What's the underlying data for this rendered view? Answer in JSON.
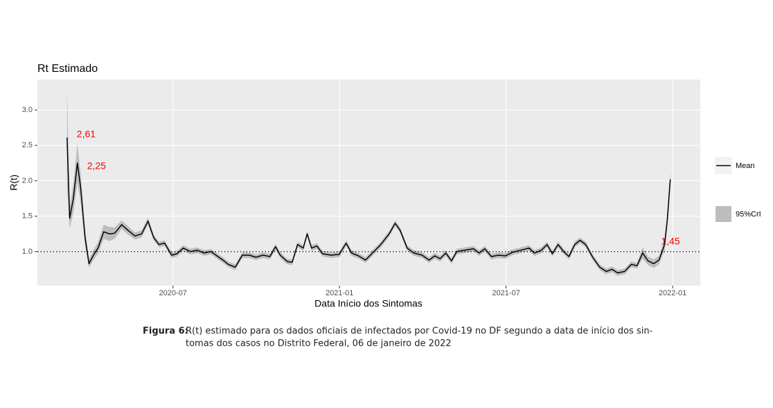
{
  "chart_data": {
    "type": "line",
    "title": "Rt Estimado",
    "x_label": "Data Início dos Sintomas",
    "y_label": "R(t)",
    "x": [
      2020.182,
      2020.19,
      2020.201,
      2020.213,
      2020.223,
      2020.236,
      2020.248,
      2020.261,
      2020.275,
      2020.292,
      2020.309,
      2020.325,
      2020.346,
      2020.365,
      2020.386,
      2020.406,
      2020.425,
      2020.442,
      2020.458,
      2020.475,
      2020.496,
      2020.512,
      2020.531,
      2020.552,
      2020.573,
      2020.594,
      2020.614,
      2020.629,
      2020.65,
      2020.666,
      2020.687,
      2020.708,
      2020.729,
      2020.749,
      2020.77,
      2020.791,
      2020.808,
      2020.822,
      2020.843,
      2020.858,
      2020.874,
      2020.891,
      2020.903,
      2020.916,
      2020.932,
      2020.949,
      2020.974,
      2020.999,
      2021.02,
      2021.036,
      2021.057,
      2021.078,
      2021.099,
      2021.124,
      2021.149,
      2021.167,
      2021.182,
      2021.203,
      2021.223,
      2021.248,
      2021.269,
      2021.286,
      2021.302,
      2021.319,
      2021.336,
      2021.352,
      2021.377,
      2021.402,
      2021.419,
      2021.436,
      2021.456,
      2021.477,
      2021.498,
      2021.519,
      2021.544,
      2021.569,
      2021.585,
      2021.606,
      2021.623,
      2021.639,
      2021.656,
      2021.673,
      2021.689,
      2021.706,
      2021.722,
      2021.739,
      2021.76,
      2021.781,
      2021.801,
      2021.818,
      2021.835,
      2021.856,
      2021.876,
      2021.893,
      2021.91,
      2021.926,
      2021.943,
      2021.959,
      2021.976,
      2021.984,
      2021.993
    ],
    "series": [
      {
        "name": "Mean",
        "color": "#000000",
        "values": [
          2.61,
          1.47,
          1.75,
          2.25,
          1.9,
          1.2,
          0.83,
          0.95,
          1.05,
          1.28,
          1.25,
          1.26,
          1.38,
          1.3,
          1.22,
          1.25,
          1.43,
          1.2,
          1.1,
          1.12,
          0.95,
          0.97,
          1.05,
          1.0,
          1.02,
          0.98,
          1.0,
          0.95,
          0.88,
          0.82,
          0.78,
          0.95,
          0.95,
          0.92,
          0.95,
          0.93,
          1.07,
          0.95,
          0.86,
          0.85,
          1.1,
          1.05,
          1.25,
          1.05,
          1.08,
          0.97,
          0.95,
          0.96,
          1.12,
          0.98,
          0.94,
          0.88,
          0.98,
          1.1,
          1.25,
          1.4,
          1.3,
          1.05,
          0.98,
          0.95,
          0.88,
          0.94,
          0.9,
          0.98,
          0.87,
          1.0,
          1.02,
          1.04,
          0.98,
          1.04,
          0.93,
          0.95,
          0.94,
          0.99,
          1.02,
          1.05,
          0.98,
          1.02,
          1.1,
          0.97,
          1.1,
          1.0,
          0.93,
          1.1,
          1.16,
          1.1,
          0.92,
          0.78,
          0.72,
          0.75,
          0.7,
          0.72,
          0.82,
          0.8,
          0.98,
          0.87,
          0.83,
          0.88,
          1.1,
          1.45,
          2.02
        ],
        "value_labels": [
          "2,61",
          null,
          null,
          "2,25",
          null,
          null,
          null,
          null,
          null,
          null,
          null,
          null,
          null,
          null,
          null,
          null,
          null,
          null,
          null,
          null,
          null,
          null,
          null,
          null,
          null,
          null,
          null,
          null,
          null,
          null,
          null,
          null,
          null,
          null,
          null,
          null,
          null,
          null,
          null,
          null,
          null,
          null,
          null,
          null,
          null,
          null,
          null,
          null,
          null,
          null,
          null,
          null,
          null,
          null,
          null,
          null,
          null,
          null,
          null,
          null,
          null,
          null,
          null,
          null,
          null,
          null,
          null,
          null,
          null,
          null,
          null,
          null,
          null,
          null,
          null,
          null,
          null,
          null,
          null,
          null,
          null,
          null,
          null,
          null,
          null,
          null,
          null,
          null,
          null,
          null,
          null,
          null,
          null,
          null,
          null,
          null,
          null,
          null,
          null,
          "1,45",
          null
        ],
        "label_color": "#ff0000"
      }
    ],
    "band": {
      "name": "95%CrI",
      "color": "#bdbdbd",
      "lower": [
        1.91,
        1.32,
        1.55,
        1.97,
        1.7,
        1.08,
        0.77,
        0.88,
        0.97,
        1.18,
        1.15,
        1.18,
        1.32,
        1.24,
        1.17,
        1.2,
        1.38,
        1.16,
        1.06,
        1.08,
        0.91,
        0.93,
        1.01,
        0.96,
        0.98,
        0.94,
        0.96,
        0.91,
        0.84,
        0.78,
        0.74,
        0.91,
        0.91,
        0.88,
        0.91,
        0.89,
        1.03,
        0.91,
        0.82,
        0.81,
        1.06,
        1.01,
        1.21,
        1.01,
        1.04,
        0.93,
        0.91,
        0.92,
        1.08,
        0.94,
        0.9,
        0.84,
        0.94,
        1.06,
        1.21,
        1.36,
        1.26,
        1.01,
        0.94,
        0.91,
        0.84,
        0.9,
        0.86,
        0.94,
        0.83,
        0.96,
        0.98,
        1.0,
        0.94,
        1.0,
        0.89,
        0.91,
        0.9,
        0.95,
        0.98,
        1.01,
        0.94,
        0.98,
        1.06,
        0.93,
        1.06,
        0.96,
        0.89,
        1.06,
        1.12,
        1.06,
        0.88,
        0.74,
        0.68,
        0.71,
        0.66,
        0.68,
        0.78,
        0.76,
        0.9,
        0.81,
        0.77,
        0.82,
        1.02,
        1.35,
        1.9
      ],
      "upper": [
        3.31,
        1.62,
        1.95,
        2.53,
        2.1,
        1.32,
        0.89,
        1.02,
        1.13,
        1.38,
        1.35,
        1.34,
        1.44,
        1.36,
        1.27,
        1.3,
        1.48,
        1.24,
        1.14,
        1.16,
        0.99,
        1.01,
        1.09,
        1.04,
        1.06,
        1.02,
        1.04,
        0.99,
        0.92,
        0.86,
        0.82,
        0.99,
        0.99,
        0.96,
        0.99,
        0.97,
        1.11,
        0.99,
        0.9,
        0.89,
        1.14,
        1.09,
        1.29,
        1.09,
        1.12,
        1.01,
        0.99,
        1.0,
        1.16,
        1.02,
        0.98,
        0.92,
        1.02,
        1.14,
        1.29,
        1.44,
        1.34,
        1.09,
        1.02,
        0.99,
        0.92,
        0.98,
        0.94,
        1.02,
        0.91,
        1.04,
        1.06,
        1.08,
        1.02,
        1.08,
        0.97,
        0.99,
        0.98,
        1.03,
        1.06,
        1.09,
        1.02,
        1.06,
        1.14,
        1.01,
        1.14,
        1.04,
        0.97,
        1.14,
        1.2,
        1.14,
        0.96,
        0.82,
        0.76,
        0.79,
        0.74,
        0.76,
        0.86,
        0.84,
        1.06,
        0.93,
        0.89,
        0.94,
        1.18,
        1.55,
        2.14
      ]
    },
    "reference_line": 1,
    "xlim": [
      2020.093,
      2022.083
    ],
    "ylim": [
      0.52,
      3.43
    ],
    "xticks": [
      {
        "value": 2020.5,
        "label": "2020-07"
      },
      {
        "value": 2021.0,
        "label": "2021-01"
      },
      {
        "value": 2021.5,
        "label": "2021-07"
      },
      {
        "value": 2022.0,
        "label": "2022-01"
      }
    ],
    "yticks": [
      {
        "value": 1,
        "label": "1.0"
      },
      {
        "value": 1.5,
        "label": "1.5"
      },
      {
        "value": 2,
        "label": "2.0"
      },
      {
        "value": 2.5,
        "label": "2.5"
      },
      {
        "value": 3,
        "label": "3.0"
      }
    ],
    "grid": true,
    "legend": "right"
  },
  "caption": {
    "label": "Figura 6:",
    "lines": [
      "R(t) estimado para os dados oficiais de infectados por Covid-19 no DF segundo a data de início dos sin-",
      "tomas dos casos no Distrito Federal, 06 de janeiro de 2022"
    ]
  }
}
